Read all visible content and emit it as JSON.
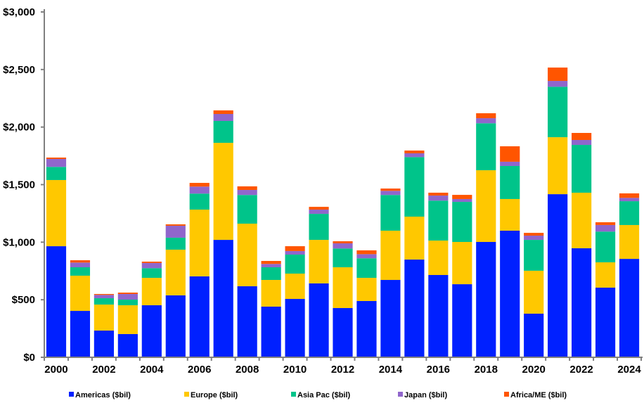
{
  "chart_data": {
    "type": "bar",
    "stacked": true,
    "title": "",
    "xlabel": "",
    "ylabel": "",
    "ylim": [
      0,
      3000
    ],
    "yticks": [
      0,
      500,
      1000,
      1500,
      2000,
      2500,
      3000
    ],
    "ytick_labels": [
      "$0",
      "$500",
      "$1,000",
      "$1,500",
      "$2,000",
      "$2,500",
      "$3,000"
    ],
    "grid": false,
    "legend_position": "bottom",
    "categories": [
      "2000",
      "2001",
      "2002",
      "2003",
      "2004",
      "2005",
      "2006",
      "2007",
      "2008",
      "2009",
      "2010",
      "2011",
      "2012",
      "2013",
      "2014",
      "2015",
      "2016",
      "2017",
      "2018",
      "2019",
      "2020",
      "2021",
      "2022",
      "2023",
      "2024"
    ],
    "xtick_labels": [
      "2000",
      "2002",
      "2004",
      "2006",
      "2008",
      "2010",
      "2012",
      "2014",
      "2016",
      "2018",
      "2020",
      "2022",
      "2024"
    ],
    "series": [
      {
        "name": "Americas ($bil)",
        "color": "#0020FF",
        "values": [
          965,
          403,
          232,
          202,
          452,
          538,
          703,
          1020,
          617,
          440,
          507,
          642,
          428,
          489,
          672,
          849,
          715,
          635,
          1002,
          1100,
          379,
          1417,
          947,
          605,
          855
        ]
      },
      {
        "name": "Europe ($bil)",
        "color": "#FFC800",
        "values": [
          575,
          306,
          226,
          250,
          238,
          397,
          580,
          843,
          544,
          232,
          220,
          378,
          354,
          201,
          428,
          373,
          299,
          367,
          623,
          275,
          373,
          495,
          483,
          220,
          294
        ]
      },
      {
        "name": "Asia Pac ($bil)",
        "color": "#00C48A",
        "values": [
          114,
          73,
          55,
          49,
          84,
          104,
          139,
          190,
          249,
          110,
          165,
          226,
          163,
          170,
          310,
          517,
          347,
          348,
          408,
          287,
          268,
          438,
          415,
          267,
          207
        ]
      },
      {
        "name": "Japan ($bil)",
        "color": "#9066CC",
        "values": [
          69,
          41,
          29,
          49,
          45,
          104,
          61,
          61,
          44,
          29,
          31,
          37,
          45,
          36,
          36,
          33,
          44,
          25,
          44,
          37,
          37,
          51,
          43,
          57,
          29
        ]
      },
      {
        "name": "Africa/ME ($bil)",
        "color": "#FF5500",
        "values": [
          12,
          20,
          8,
          12,
          12,
          12,
          32,
          31,
          31,
          26,
          42,
          24,
          18,
          33,
          20,
          24,
          25,
          36,
          43,
          134,
          24,
          116,
          61,
          24,
          39
        ]
      }
    ]
  }
}
